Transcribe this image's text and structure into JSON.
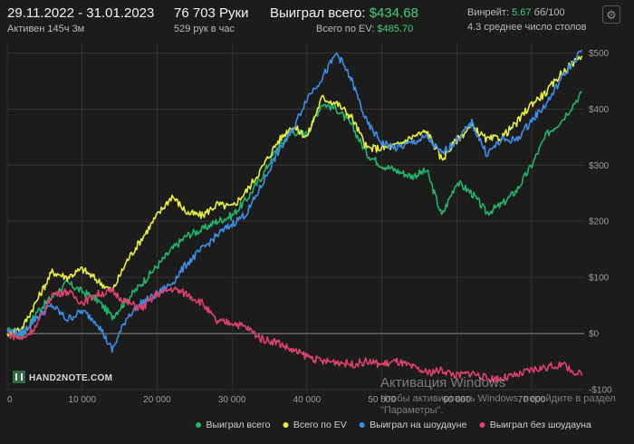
{
  "header": {
    "date_range": "29.11.2022 - 31.01.2023",
    "active_time": "Активен 145ч 3м",
    "hands": "76 703 Руки",
    "hands_per_hour": "529 рук в час",
    "won_total_label": "Выиграл всего:",
    "won_total_value": "$434.68",
    "ev_total_label": "Всего по EV:",
    "ev_total_value": "$485.70",
    "winrate_label": "Винрейт:",
    "winrate_value": "5.67",
    "winrate_unit": "бб/100",
    "avg_tables": "4.3 среднее число столов",
    "gear_icon": "gear-icon"
  },
  "logo_text": "HAND2NOTE.COM",
  "watermark": {
    "line1": "Активация Windows",
    "line2": "Чтобы активировать Windows, перейдите в раздел",
    "line3": "\"Параметры\"."
  },
  "colors": {
    "won": "#1fb56a",
    "ev": "#e6f03c",
    "showdown": "#3b8ee8",
    "non_showdown": "#e0406e",
    "grid": "#3a3a3a",
    "axis_text": "#9a9a9a"
  },
  "chart_data": {
    "type": "line",
    "xlim": [
      0,
      77000
    ],
    "ylim": [
      -100,
      520
    ],
    "x_ticks": [
      0,
      10000,
      20000,
      30000,
      40000,
      50000,
      60000,
      70000
    ],
    "x_tick_labels": [
      "0",
      "10 000",
      "20 000",
      "30 000",
      "40 000",
      "50 000",
      "60 000",
      "70 000"
    ],
    "y_ticks": [
      -100,
      0,
      100,
      200,
      300,
      400,
      500
    ],
    "y_tick_labels": [
      "-$100",
      "$0",
      "$100",
      "$200",
      "$300",
      "$400",
      "$500"
    ],
    "legend_position": "bottom-right",
    "x": [
      0,
      2000,
      4000,
      6000,
      8000,
      10000,
      12000,
      14000,
      16000,
      18000,
      20000,
      22000,
      24000,
      26000,
      28000,
      30000,
      32000,
      34000,
      36000,
      38000,
      40000,
      42000,
      44000,
      46000,
      48000,
      50000,
      52000,
      54000,
      56000,
      58000,
      60000,
      62000,
      64000,
      66000,
      68000,
      70000,
      72000,
      74000,
      76703
    ],
    "series": [
      {
        "name": "Выиграл всего",
        "color_key": "won",
        "values": [
          5,
          -5,
          40,
          65,
          90,
          75,
          60,
          30,
          60,
          90,
          120,
          150,
          175,
          185,
          200,
          210,
          240,
          280,
          330,
          360,
          355,
          410,
          400,
          370,
          320,
          300,
          290,
          280,
          290,
          210,
          270,
          250,
          215,
          230,
          255,
          300,
          355,
          380,
          430
        ]
      },
      {
        "name": "Всего по EV",
        "color_key": "ev",
        "values": [
          0,
          10,
          60,
          110,
          100,
          115,
          95,
          75,
          130,
          170,
          210,
          245,
          215,
          210,
          230,
          225,
          255,
          295,
          340,
          370,
          350,
          420,
          410,
          385,
          330,
          330,
          335,
          350,
          360,
          310,
          345,
          370,
          345,
          350,
          375,
          410,
          430,
          465,
          495
        ]
      },
      {
        "name": "Выиграл на шоудауне",
        "color_key": "showdown",
        "values": [
          5,
          0,
          30,
          50,
          25,
          40,
          20,
          -30,
          30,
          55,
          70,
          90,
          125,
          150,
          175,
          195,
          215,
          265,
          320,
          360,
          420,
          455,
          500,
          450,
          375,
          340,
          330,
          340,
          350,
          320,
          345,
          375,
          320,
          345,
          345,
          380,
          410,
          455,
          505
        ]
      },
      {
        "name": "Выиграл без шоудауна",
        "color_key": "non_showdown",
        "values": [
          0,
          -10,
          15,
          70,
          75,
          55,
          70,
          75,
          55,
          45,
          70,
          80,
          70,
          55,
          20,
          20,
          10,
          -10,
          -15,
          -30,
          -40,
          -50,
          -50,
          -55,
          -50,
          -55,
          -50,
          -60,
          -70,
          -65,
          -75,
          -70,
          -80,
          -80,
          -75,
          -65,
          -60,
          -55,
          -75
        ]
      }
    ]
  },
  "legend": {
    "items": [
      {
        "label": "Выиграл всего",
        "color_key": "won"
      },
      {
        "label": "Всего по EV",
        "color_key": "ev"
      },
      {
        "label": "Выиграл на шоудауне",
        "color_key": "showdown"
      },
      {
        "label": "Выиграл без шоудауна",
        "color_key": "non_showdown"
      }
    ]
  }
}
